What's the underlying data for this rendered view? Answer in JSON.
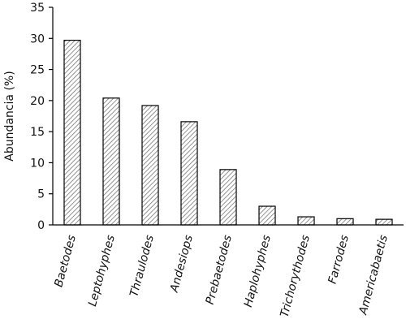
{
  "chart_data": {
    "type": "bar",
    "y_label": "Abundancia (%)",
    "categories": [
      "Baetodes",
      "Leptohyphes",
      "Thraulodes",
      "Andesiops",
      "Prebaetodes",
      "Haplohyphes",
      "Trichorythodes",
      "Farrodes",
      "Americabaetis"
    ],
    "values": [
      29.7,
      20.4,
      19.2,
      16.6,
      8.9,
      3.0,
      1.3,
      1.0,
      0.9
    ],
    "color": "#000000",
    "ylim": [
      0,
      35
    ],
    "yticks": [
      0,
      5,
      10,
      15,
      20,
      25,
      30,
      35
    ],
    "grid": false
  }
}
